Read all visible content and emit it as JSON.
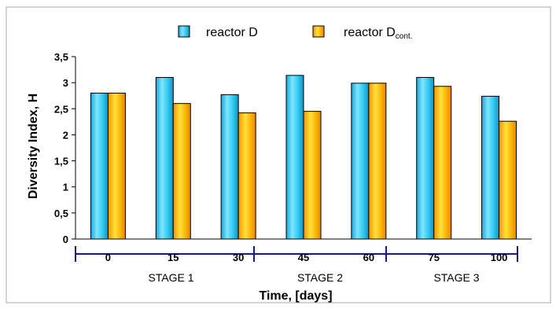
{
  "chart_data": {
    "type": "bar",
    "xlabel": "Time, [days]",
    "ylabel": "Diversity Index, H",
    "ylim": [
      0,
      3.5
    ],
    "yticks": [
      "0",
      "0,5",
      "1",
      "1,5",
      "2",
      "2,5",
      "3",
      "3,5"
    ],
    "categories": [
      "0",
      "15",
      "30",
      "45",
      "60",
      "75",
      "100"
    ],
    "stages": [
      "STAGE 1",
      "STAGE 2",
      "STAGE 3"
    ],
    "legend_position": "top",
    "series": [
      {
        "name": "reactor D",
        "name_sub": "",
        "color": "#2ec8f0",
        "values": [
          2.8,
          3.1,
          2.77,
          3.14,
          2.99,
          3.1,
          2.74
        ]
      },
      {
        "name": "reactor D",
        "name_sub": "cont.",
        "color": "#f6a300",
        "values": [
          2.8,
          2.6,
          2.42,
          2.45,
          2.99,
          2.93,
          2.26
        ]
      }
    ],
    "grid": false
  }
}
